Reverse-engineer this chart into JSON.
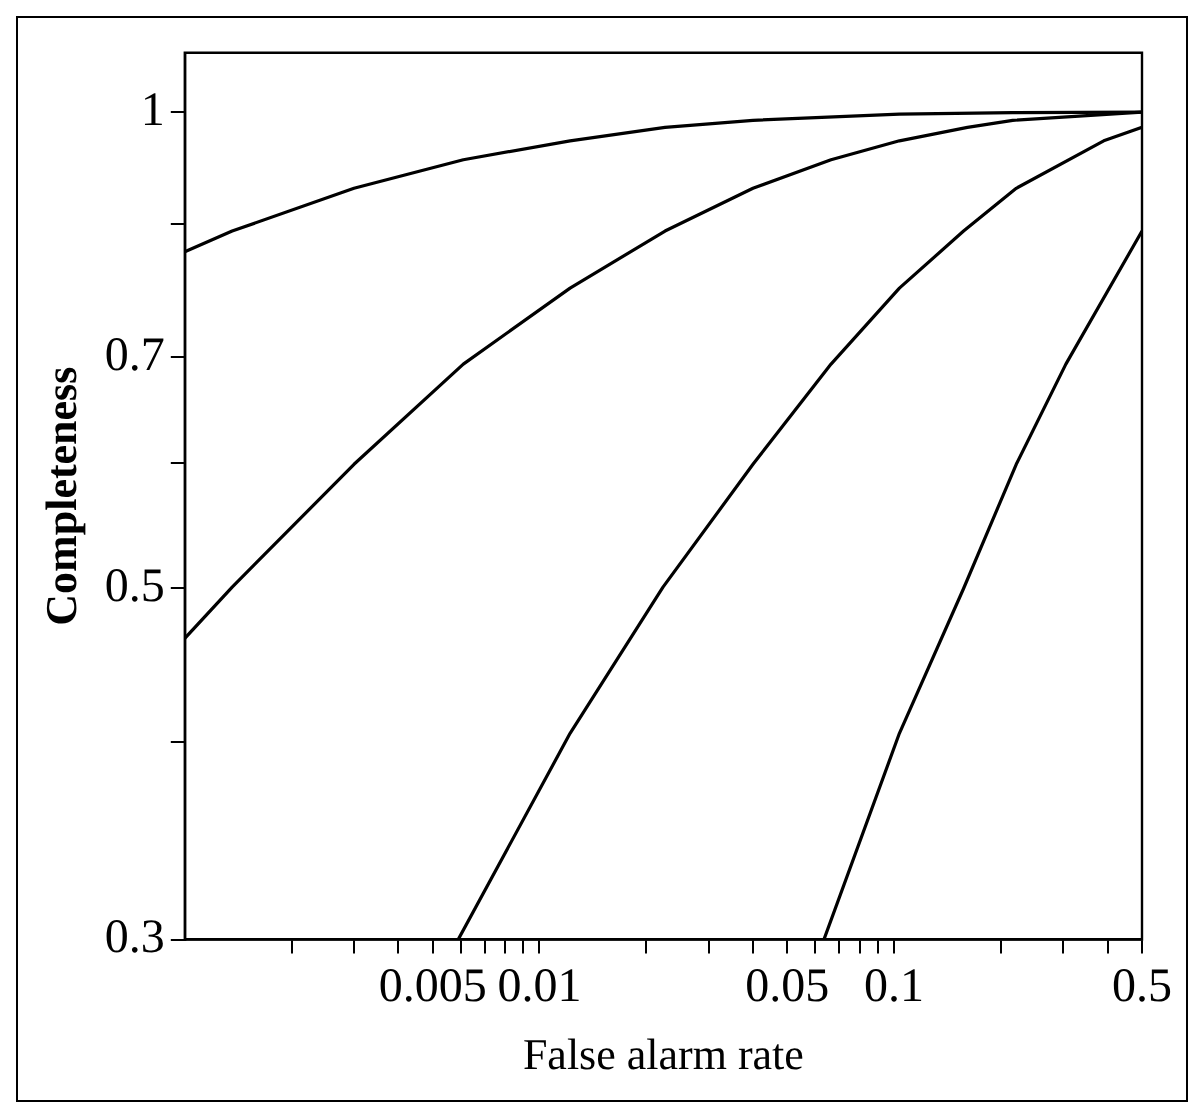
{
  "chart_data": {
    "type": "line",
    "xlabel": "False alarm rate",
    "ylabel": "Completeness",
    "log": "xy",
    "grid": false,
    "legend": false,
    "marker": "none",
    "line_style": "solid",
    "xlim": [
      0.001,
      0.5
    ],
    "ylim": [
      0.3,
      1.09
    ],
    "xticks": [
      {
        "value": 0.002,
        "label": null
      },
      {
        "value": 0.003,
        "label": null
      },
      {
        "value": 0.004,
        "label": null
      },
      0.005,
      {
        "value": 0.006,
        "label": null
      },
      {
        "value": 0.007,
        "label": null
      },
      {
        "value": 0.008,
        "label": null
      },
      {
        "value": 0.009,
        "label": null
      },
      0.01,
      {
        "value": 0.02,
        "label": null
      },
      {
        "value": 0.03,
        "label": null
      },
      {
        "value": 0.04,
        "label": null
      },
      0.05,
      {
        "value": 0.06,
        "label": null
      },
      {
        "value": 0.07,
        "label": null
      },
      {
        "value": 0.08,
        "label": null
      },
      {
        "value": 0.09,
        "label": null
      },
      0.1,
      {
        "value": 0.2,
        "label": null
      },
      {
        "value": 0.3,
        "label": null
      },
      {
        "value": 0.4,
        "label": null
      },
      0.5
    ],
    "yticks": [
      0.3,
      {
        "value": 0.4,
        "label": null
      },
      0.5,
      {
        "value": 0.6,
        "label": null
      },
      0.7,
      {
        "value": 0.85,
        "label": null
      },
      1
    ],
    "series": [
      {
        "color": "#000000",
        "x": [
          0.001,
          0.00136,
          0.003,
          0.0061,
          0.0122,
          0.0226,
          0.04,
          0.1035,
          0.216,
          0.5
        ],
        "values": [
          0.816,
          0.841,
          0.895,
          0.933,
          0.959,
          0.978,
          0.988,
          0.997,
          0.999,
          1.0
        ]
      },
      {
        "color": "#000000",
        "x": [
          0.001,
          0.00136,
          0.003,
          0.0061,
          0.0122,
          0.0226,
          0.04,
          0.0664,
          0.1035,
          0.161,
          0.216,
          0.5
        ],
        "values": [
          0.465,
          0.501,
          0.599,
          0.693,
          0.774,
          0.841,
          0.895,
          0.933,
          0.959,
          0.978,
          0.988,
          1.0
        ]
      },
      {
        "color": "#000000",
        "x": [
          0.0059,
          0.0122,
          0.0223,
          0.04,
          0.0664,
          0.1035,
          0.157,
          0.221,
          0.39,
          0.5
        ],
        "values": [
          0.3,
          0.405,
          0.501,
          0.599,
          0.693,
          0.774,
          0.841,
          0.895,
          0.959,
          0.978
        ]
      },
      {
        "color": "#000000",
        "x": [
          0.0634,
          0.1035,
          0.157,
          0.221,
          0.305,
          0.5
        ],
        "values": [
          0.3,
          0.405,
          0.5,
          0.599,
          0.693,
          0.841
        ]
      }
    ]
  }
}
